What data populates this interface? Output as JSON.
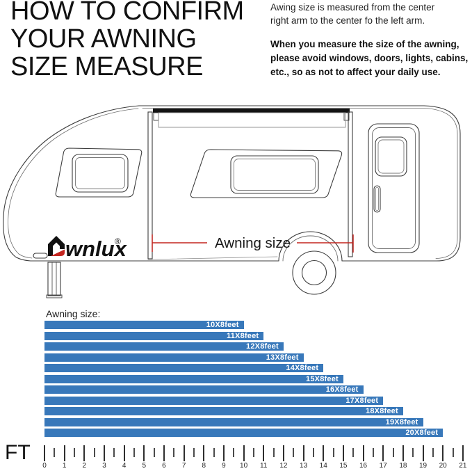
{
  "header": {
    "title_lines": [
      "HOW TO CONFIRM",
      "YOUR AWNING",
      "SIZE MEASURE"
    ],
    "note_black_lines": [
      "Awing size is measured from the center",
      "right arm to the center fo the left arm."
    ],
    "note_red_lines": [
      "When you measure the size of the awning,",
      "please avoid windows, doors, lights, cabins,",
      "etc., so as not to affect your daily use."
    ]
  },
  "diagram": {
    "brand_text": "wnlux",
    "registered_mark": "®",
    "annotation": "Awning size"
  },
  "chart_data": {
    "type": "bar",
    "orientation": "horizontal",
    "title": "Awning size:",
    "categories": [
      "10X8feet",
      "11X8feet",
      "12X8feet",
      "13X8feet",
      "14X8feet",
      "15X8feet",
      "16X8feet",
      "17X8feet",
      "18X8feet",
      "19X8feet",
      "20X8feet"
    ],
    "values": [
      10,
      11,
      12,
      13,
      14,
      15,
      16,
      17,
      18,
      19,
      20
    ],
    "xlabel": "FT",
    "axis": {
      "min": 0,
      "max": 21,
      "major_step": 1,
      "minor_step": 0.5
    },
    "bar_color": "#3878BA",
    "bar_label_color": "#FFFFFF"
  },
  "colors": {
    "accent_red": "#C3251F",
    "ink": "#111111",
    "bar_blue": "#3878BA"
  }
}
